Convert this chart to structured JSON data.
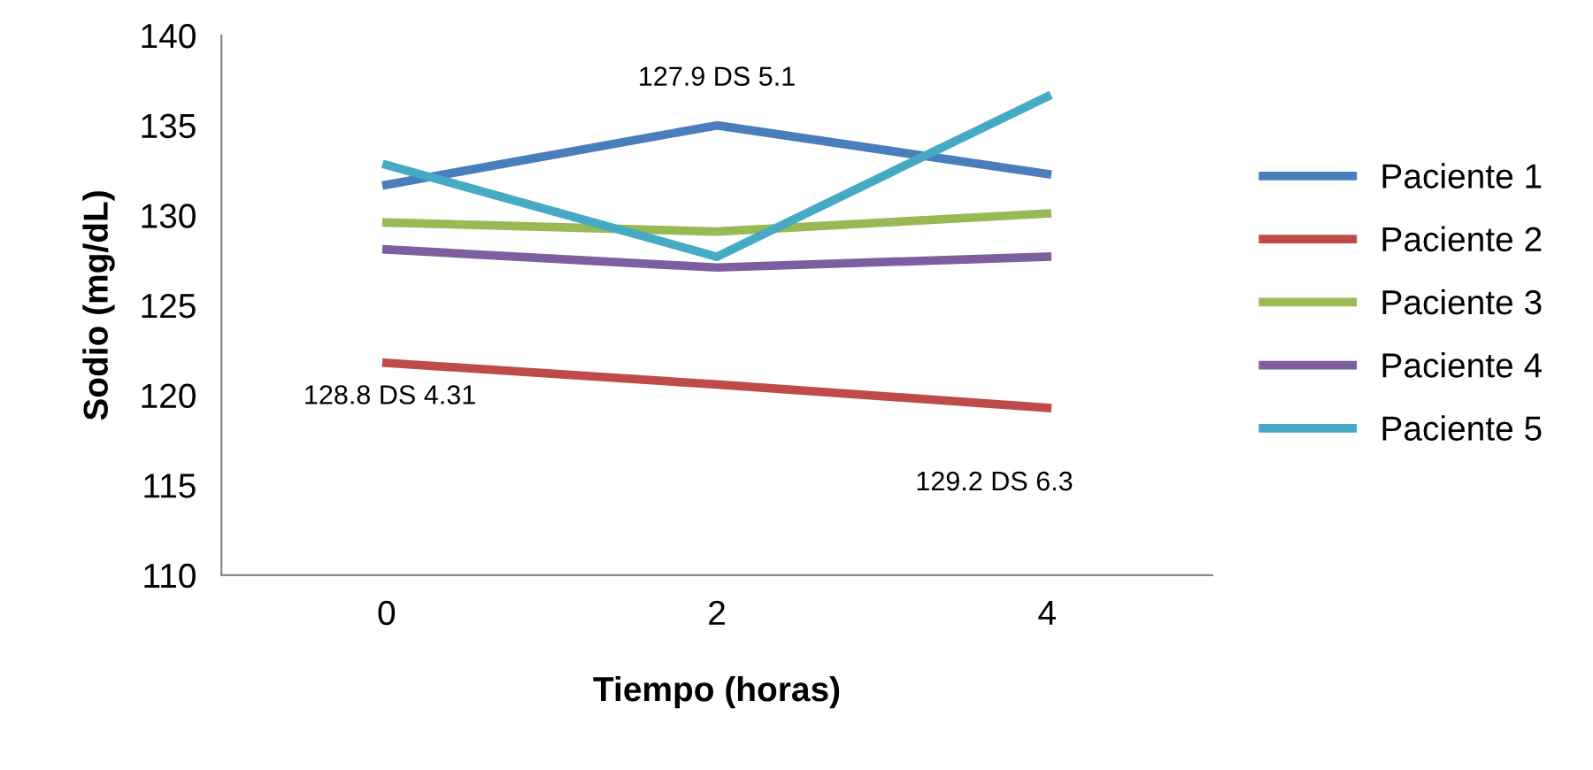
{
  "chart_data": {
    "type": "line",
    "xlabel": "Tiempo (horas)",
    "ylabel": "Sodio (mg/dL)",
    "categories": [
      "0",
      "2",
      "4"
    ],
    "series": [
      {
        "name": "Paciente 1",
        "color": "#4a7ebb",
        "values": [
          131.7,
          135.0,
          132.3
        ]
      },
      {
        "name": "Paciente 2",
        "color": "#be4b48",
        "values": [
          121.8,
          120.6,
          119.3
        ]
      },
      {
        "name": "Paciente 3",
        "color": "#98b954",
        "values": [
          129.6,
          129.1,
          130.1
        ]
      },
      {
        "name": "Paciente 4",
        "color": "#7d5fa0",
        "values": [
          128.1,
          127.1,
          127.7
        ]
      },
      {
        "name": "Paciente 5",
        "color": "#46aac5",
        "values": [
          132.8,
          127.7,
          136.6
        ]
      }
    ],
    "ylim": [
      110,
      140
    ],
    "yticks": [
      110,
      115,
      120,
      125,
      130,
      135,
      140
    ],
    "annotations": [
      "128.8 DS 4.31",
      "127.9 DS 5.1",
      "129.2 DS 6.3"
    ],
    "legend": "right",
    "grid": false,
    "marker": "none",
    "line_style": "solid"
  }
}
